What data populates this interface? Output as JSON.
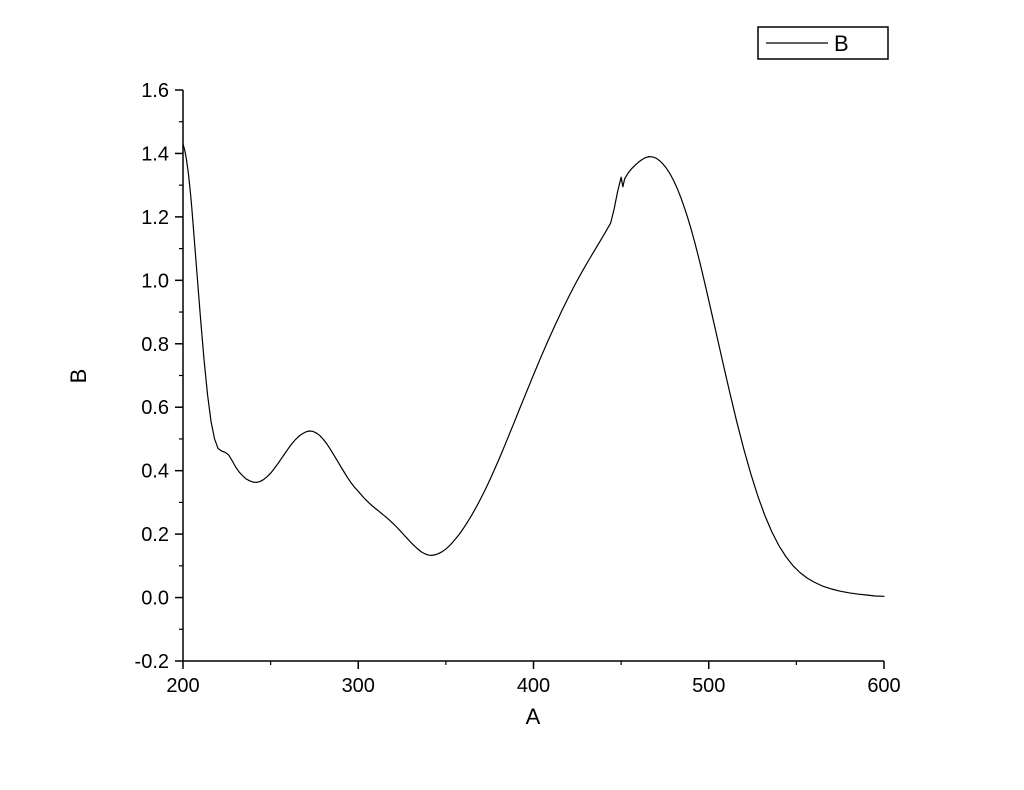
{
  "chart_data": {
    "type": "line",
    "title": "",
    "xlabel": "A",
    "ylabel": "B",
    "xlim": [
      200,
      600
    ],
    "ylim": [
      -0.2,
      1.6
    ],
    "x_major_ticks": [
      200,
      300,
      400,
      500,
      600
    ],
    "x_minor_ticks": [
      250,
      350,
      450,
      550
    ],
    "y_major_ticks": [
      -0.2,
      0.0,
      0.2,
      0.4,
      0.6,
      0.8,
      1.0,
      1.2,
      1.4,
      1.6
    ],
    "y_minor_ticks": [
      -0.1,
      0.1,
      0.3,
      0.5,
      0.7,
      0.9,
      1.1,
      1.3,
      1.5
    ],
    "grid": false,
    "legend": {
      "position": "top-right",
      "entries": [
        "B"
      ]
    },
    "line_color": "#000000",
    "axis_color": "#000000",
    "background_color": "#ffffff",
    "x": [
      200,
      201,
      202,
      203,
      204,
      205,
      206,
      208,
      210,
      212,
      214,
      216,
      218,
      220,
      222,
      224,
      226,
      228,
      230,
      232,
      234,
      236,
      238,
      240,
      242,
      244,
      246,
      248,
      250,
      252,
      254,
      256,
      258,
      260,
      262,
      264,
      266,
      268,
      270,
      272,
      274,
      276,
      278,
      280,
      282,
      284,
      286,
      288,
      290,
      292,
      294,
      296,
      298,
      300,
      302,
      304,
      306,
      308,
      310,
      312,
      314,
      316,
      318,
      320,
      322,
      324,
      326,
      328,
      330,
      332,
      334,
      336,
      338,
      340,
      342,
      344,
      346,
      348,
      350,
      352,
      354,
      356,
      358,
      360,
      362,
      364,
      366,
      368,
      370,
      372,
      374,
      376,
      378,
      380,
      382,
      384,
      386,
      388,
      390,
      392,
      394,
      396,
      398,
      400,
      404,
      408,
      412,
      416,
      420,
      424,
      428,
      432,
      436,
      440,
      444,
      446,
      448,
      450,
      451,
      452,
      454,
      456,
      458,
      460,
      462,
      464,
      466,
      468,
      470,
      472,
      474,
      476,
      478,
      480,
      482,
      484,
      486,
      488,
      490,
      492,
      494,
      496,
      498,
      500,
      504,
      508,
      512,
      516,
      520,
      524,
      528,
      532,
      536,
      540,
      544,
      548,
      552,
      556,
      560,
      565,
      570,
      575,
      580,
      585,
      590,
      595,
      600
    ],
    "series": [
      {
        "name": "B",
        "values": [
          1.43,
          1.41,
          1.38,
          1.34,
          1.29,
          1.23,
          1.16,
          1.02,
          0.88,
          0.75,
          0.64,
          0.555,
          0.5,
          0.47,
          0.462,
          0.458,
          0.45,
          0.432,
          0.412,
          0.396,
          0.384,
          0.374,
          0.368,
          0.364,
          0.363,
          0.366,
          0.372,
          0.381,
          0.392,
          0.406,
          0.421,
          0.437,
          0.453,
          0.469,
          0.484,
          0.497,
          0.508,
          0.516,
          0.522,
          0.525,
          0.524,
          0.519,
          0.511,
          0.499,
          0.485,
          0.468,
          0.45,
          0.432,
          0.413,
          0.395,
          0.377,
          0.361,
          0.347,
          0.335,
          0.322,
          0.31,
          0.299,
          0.289,
          0.28,
          0.271,
          0.262,
          0.253,
          0.243,
          0.233,
          0.222,
          0.21,
          0.198,
          0.186,
          0.174,
          0.163,
          0.153,
          0.144,
          0.138,
          0.134,
          0.133,
          0.135,
          0.139,
          0.145,
          0.153,
          0.163,
          0.175,
          0.188,
          0.202,
          0.218,
          0.235,
          0.253,
          0.272,
          0.292,
          0.313,
          0.335,
          0.358,
          0.382,
          0.407,
          0.432,
          0.458,
          0.485,
          0.512,
          0.539,
          0.566,
          0.594,
          0.621,
          0.648,
          0.675,
          0.702,
          0.755,
          0.806,
          0.855,
          0.902,
          0.947,
          0.99,
          1.03,
          1.068,
          1.105,
          1.142,
          1.18,
          1.225,
          1.28,
          1.325,
          1.295,
          1.32,
          1.338,
          1.352,
          1.363,
          1.373,
          1.381,
          1.387,
          1.39,
          1.389,
          1.385,
          1.377,
          1.366,
          1.352,
          1.335,
          1.314,
          1.29,
          1.262,
          1.231,
          1.197,
          1.16,
          1.12,
          1.077,
          1.032,
          0.985,
          0.937,
          0.84,
          0.742,
          0.646,
          0.554,
          0.468,
          0.39,
          0.32,
          0.259,
          0.207,
          0.164,
          0.129,
          0.101,
          0.079,
          0.062,
          0.049,
          0.036,
          0.027,
          0.02,
          0.015,
          0.011,
          0.008,
          0.005,
          0.004
        ]
      }
    ]
  }
}
